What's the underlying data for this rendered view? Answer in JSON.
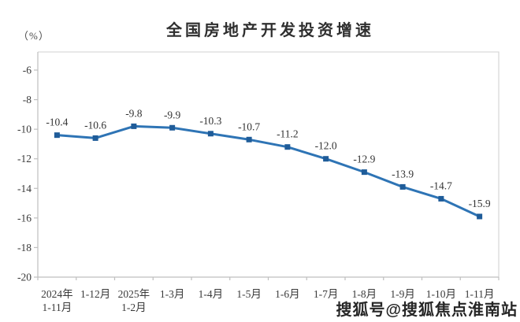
{
  "page": {
    "title": "全国房地产开发投资增速",
    "unit_label": "（%）",
    "watermark": "搜狐号@搜狐焦点淮南站"
  },
  "chart_data": {
    "type": "line",
    "title": "全国房地产开发投资增速",
    "ylabel": "（%）",
    "xlabel": "",
    "categories": [
      [
        "2024年",
        "1-11月"
      ],
      [
        "1-12月"
      ],
      [
        "2025年",
        "1-2月"
      ],
      [
        "1-3月"
      ],
      [
        "1-4月"
      ],
      [
        "1-5月"
      ],
      [
        "1-6月"
      ],
      [
        "1-7月"
      ],
      [
        "1-8月"
      ],
      [
        "1-9月"
      ],
      [
        "1-10月"
      ],
      [
        "1-11月"
      ]
    ],
    "series": [
      {
        "name": "全国房地产开发投资增速",
        "values": [
          -10.4,
          -10.6,
          -9.8,
          -9.9,
          -10.3,
          -10.7,
          -11.2,
          -12.0,
          -12.9,
          -13.9,
          -14.7,
          -15.9
        ]
      }
    ],
    "data_labels": [
      "-10.4",
      "-10.6",
      "-9.8",
      "-9.9",
      "-10.3",
      "-10.7",
      "-11.2",
      "-12.0",
      "-12.9",
      "-13.9",
      "-14.7",
      "-15.9"
    ],
    "yticks": [
      -6,
      -8,
      -10,
      -12,
      -14,
      -16,
      -18,
      -20
    ],
    "ylim": [
      -20,
      -6
    ],
    "grid": false,
    "legend": "none",
    "colors": {
      "line": "#2E74B5",
      "marker": "#1F5C99",
      "axis": "#BFBFBF",
      "frame": "#D9D9D9",
      "text": "#333333"
    }
  }
}
